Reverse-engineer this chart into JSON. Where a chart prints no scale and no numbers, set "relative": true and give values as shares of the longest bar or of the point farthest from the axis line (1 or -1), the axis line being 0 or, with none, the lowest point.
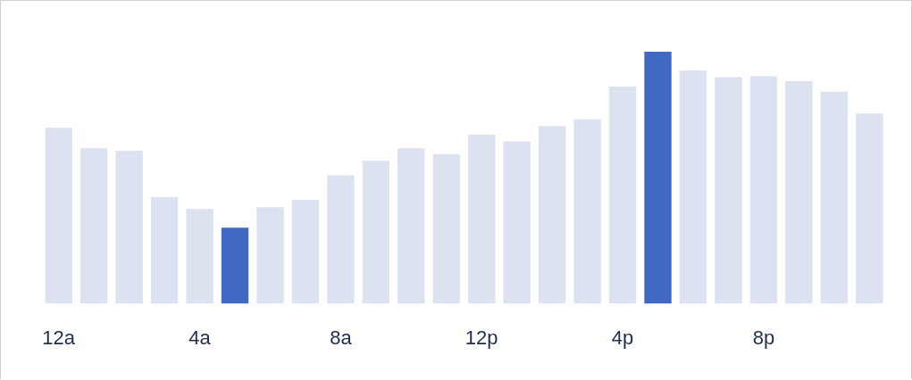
{
  "chart_data": {
    "type": "bar",
    "relative": true,
    "categories": [
      "12a",
      null,
      null,
      null,
      "4a",
      null,
      null,
      null,
      "8a",
      null,
      null,
      null,
      "12p",
      null,
      null,
      null,
      "4p",
      null,
      null,
      null,
      "8p",
      null,
      null,
      null
    ],
    "values": [
      0.698,
      0.617,
      0.607,
      0.423,
      0.376,
      0.302,
      0.383,
      0.413,
      0.51,
      0.567,
      0.617,
      0.594,
      0.671,
      0.644,
      0.705,
      0.732,
      0.862,
      1,
      0.926,
      0.899,
      0.903,
      0.883,
      0.842,
      0.755
    ],
    "colors": [
      "#dce2f0",
      "#dce2f0",
      "#dce2f0",
      "#dce2f0",
      "#dce2f0",
      "#4169c4",
      "#dce2f0",
      "#dce2f0",
      "#dce2f0",
      "#dce2f0",
      "#dce2f0",
      "#dce2f0",
      "#dce2f0",
      "#dce2f0",
      "#dce2f0",
      "#dce2f0",
      "#dce2f0",
      "#4169c4",
      "#dce2f0",
      "#dce2f0",
      "#dce2f0",
      "#dce2f0",
      "#dce2f0",
      "#dce2f0"
    ],
    "grid": false,
    "legend": false
  }
}
